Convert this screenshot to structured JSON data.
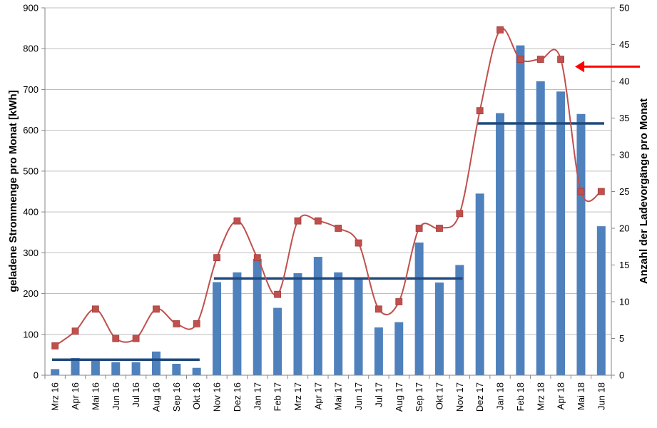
{
  "chart_data": {
    "type": "bar",
    "categories": [
      "Mrz 16",
      "Apr 16",
      "Mai 16",
      "Jun 16",
      "Jul 16",
      "Aug 16",
      "Sep 16",
      "Okt 16",
      "Nov 16",
      "Dez 16",
      "Jan 17",
      "Feb 17",
      "Mrz 17",
      "Apr 17",
      "Mai 17",
      "Jun 17",
      "Jul 17",
      "Aug 17",
      "Sep 17",
      "Okt 17",
      "Nov 17",
      "Dez 17",
      "Jan 18",
      "Feb 18",
      "Mrz 18",
      "Apr 18",
      "Mai 18",
      "Jun 18"
    ],
    "series": [
      {
        "type": "bar",
        "axis": "left",
        "color": "#4f81bd",
        "values": [
          15,
          42,
          38,
          32,
          32,
          58,
          28,
          18,
          228,
          252,
          285,
          165,
          250,
          290,
          252,
          238,
          117,
          130,
          325,
          227,
          270,
          445,
          642,
          808,
          720,
          695,
          640,
          365
        ]
      },
      {
        "type": "line",
        "axis": "right",
        "smooth": true,
        "marker": "square",
        "color": "#c0504d",
        "values": [
          4,
          6,
          9,
          5,
          5,
          9,
          7,
          7,
          16,
          21,
          16,
          11,
          21,
          21,
          20,
          18,
          9,
          10,
          20,
          20,
          22,
          36,
          47,
          43,
          43,
          43,
          25,
          25
        ]
      },
      {
        "type": "hline",
        "axis": "left",
        "color": "#1f497d",
        "segments": [
          {
            "from": "Mrz 16",
            "to": "Okt 16",
            "value": 38
          },
          {
            "from": "Nov 16",
            "to": "Nov 17",
            "value": 237
          },
          {
            "from": "Dez 17",
            "to": "Jun 18",
            "value": 617
          }
        ]
      }
    ],
    "ylabel": "geladene Strommenge pro Monat [kWh]",
    "y2label": "Anzahl der Ladevorgänge pro Monat",
    "ylim": [
      0,
      900
    ],
    "y2lim": [
      0,
      50
    ],
    "yticks": [
      0,
      100,
      200,
      300,
      400,
      500,
      600,
      700,
      800,
      900
    ],
    "y2ticks": [
      0,
      5,
      10,
      15,
      20,
      25,
      30,
      35,
      40,
      45,
      50
    ],
    "grid": true,
    "annotations": [
      {
        "type": "arrow",
        "color": "#ff0000",
        "points_to": "Apr 18",
        "axis": "right",
        "value": 42
      }
    ]
  }
}
